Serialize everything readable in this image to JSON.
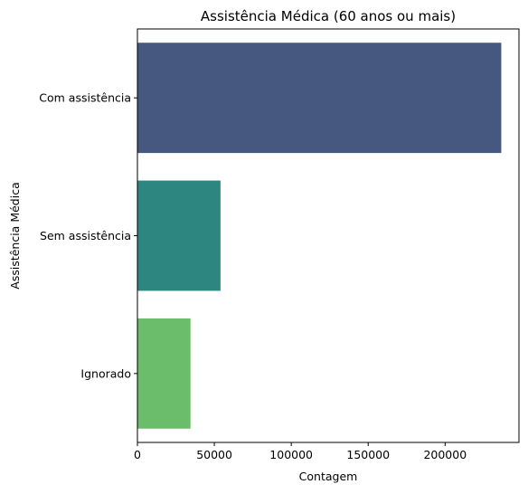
{
  "chart_data": {
    "type": "bar",
    "orientation": "horizontal",
    "title": "Assistência Médica (60 anos ou mais)",
    "xlabel": "Contagem",
    "ylabel": "Assistência Médica",
    "categories": [
      "Com assistência",
      "Sem assistência",
      "Ignorado"
    ],
    "values": [
      236500,
      54000,
      34500
    ],
    "colors": [
      "#46587f",
      "#2e8680",
      "#6bbd6c"
    ],
    "xlim": [
      0,
      248000
    ],
    "xticks": [
      0,
      50000,
      100000,
      150000,
      200000
    ],
    "xtick_labels": [
      "0",
      "50000",
      "100000",
      "150000",
      "200000"
    ],
    "grid": false
  }
}
